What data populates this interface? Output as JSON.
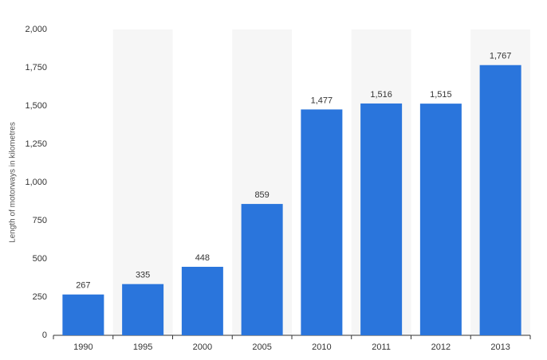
{
  "chart_data": {
    "type": "bar",
    "y_label": "Length of motorways in kilometres",
    "categories": [
      "1990",
      "1995",
      "2000",
      "2005",
      "2010",
      "2011",
      "2012",
      "2013"
    ],
    "values": [
      267,
      335,
      448,
      859,
      1477,
      1516,
      1515,
      1767
    ],
    "value_labels": [
      "267",
      "335",
      "448",
      "859",
      "1,477",
      "1,516",
      "1,515",
      "1,767"
    ],
    "color": "#2a75dc",
    "ylim": [
      0,
      2000
    ],
    "yticks": [
      0,
      250,
      500,
      750,
      {
        "value": 1000,
        "label": "1,000"
      },
      {
        "value": 1250,
        "label": "1,250"
      },
      {
        "value": 1500,
        "label": "1,500"
      },
      {
        "value": 1750,
        "label": "1,750"
      },
      {
        "value": 2000,
        "label": "2,000"
      }
    ],
    "grid": true
  }
}
